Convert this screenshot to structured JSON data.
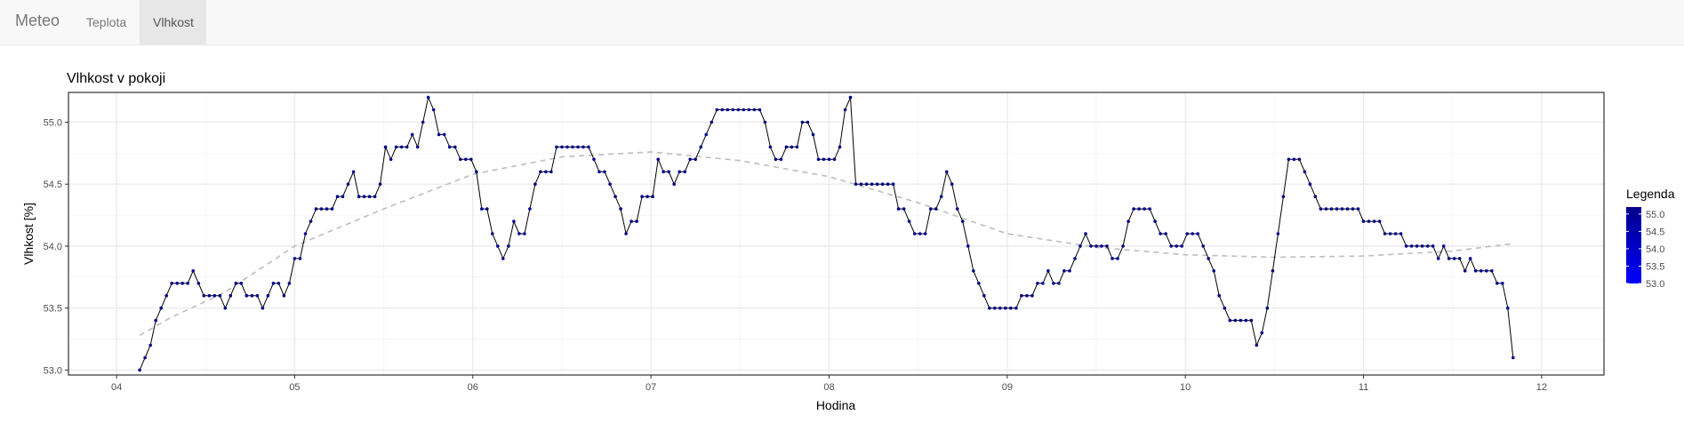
{
  "navbar": {
    "brand": "Meteo",
    "tabs": [
      {
        "label": "Teplota",
        "active": false
      },
      {
        "label": "Vlhkost",
        "active": true
      }
    ]
  },
  "colors": {
    "line": "#000000",
    "point_fill": "#00008b",
    "smooth": "#bdbdbd",
    "panel_border": "#333333",
    "grid_major": "#ebebeb",
    "grid_minor": "#f5f5f5",
    "legend_low": "#0000ff",
    "legend_high": "#00008b"
  },
  "chart_data": {
    "type": "line",
    "title": "Vlhkost v pokoji",
    "xlabel": "Hodina",
    "ylabel": "Vlhkost [%]",
    "xlim": [
      3.73,
      12.35
    ],
    "ylim": [
      52.96,
      55.24
    ],
    "x_ticks": [
      4,
      5,
      6,
      7,
      8,
      9,
      10,
      11,
      12
    ],
    "x_tick_labels": [
      "04",
      "05",
      "06",
      "07",
      "08",
      "09",
      "10",
      "11",
      "12"
    ],
    "y_ticks": [
      53.0,
      53.5,
      54.0,
      54.5,
      55.0
    ],
    "y_tick_labels": [
      "53.0",
      "53.5",
      "54.0",
      "54.5",
      "55.0"
    ],
    "grid": true,
    "legend": {
      "title": "Legenda",
      "position": "right",
      "type": "colorbar",
      "range": [
        53.0,
        55.2
      ],
      "labels": [
        "55.0",
        "54.5",
        "54.0",
        "53.5",
        "53.0"
      ],
      "label_values": [
        55.0,
        54.5,
        54.0,
        53.5,
        53.0
      ]
    },
    "series": [
      {
        "points": [
          [
            4.13,
            53.0
          ],
          [
            4.16,
            53.1
          ],
          [
            4.19,
            53.2
          ],
          [
            4.22,
            53.4
          ],
          [
            4.25,
            53.5
          ],
          [
            4.28,
            53.6
          ],
          [
            4.31,
            53.7
          ],
          [
            4.34,
            53.7
          ],
          [
            4.37,
            53.7
          ],
          [
            4.4,
            53.7
          ],
          [
            4.43,
            53.8
          ],
          [
            4.46,
            53.7
          ],
          [
            4.49,
            53.6
          ],
          [
            4.52,
            53.6
          ],
          [
            4.55,
            53.6
          ],
          [
            4.58,
            53.6
          ],
          [
            4.61,
            53.5
          ],
          [
            4.64,
            53.6
          ],
          [
            4.67,
            53.7
          ],
          [
            4.7,
            53.7
          ],
          [
            4.73,
            53.6
          ],
          [
            4.76,
            53.6
          ],
          [
            4.79,
            53.6
          ],
          [
            4.82,
            53.5
          ],
          [
            4.85,
            53.6
          ],
          [
            4.88,
            53.7
          ],
          [
            4.91,
            53.7
          ],
          [
            4.94,
            53.6
          ],
          [
            4.97,
            53.7
          ],
          [
            5.0,
            53.9
          ],
          [
            5.03,
            53.9
          ],
          [
            5.06,
            54.1
          ],
          [
            5.09,
            54.2
          ],
          [
            5.12,
            54.3
          ],
          [
            5.15,
            54.3
          ],
          [
            5.18,
            54.3
          ],
          [
            5.21,
            54.3
          ],
          [
            5.24,
            54.4
          ],
          [
            5.27,
            54.4
          ],
          [
            5.3,
            54.5
          ],
          [
            5.33,
            54.6
          ],
          [
            5.36,
            54.4
          ],
          [
            5.39,
            54.4
          ],
          [
            5.42,
            54.4
          ],
          [
            5.45,
            54.4
          ],
          [
            5.48,
            54.5
          ],
          [
            5.51,
            54.8
          ],
          [
            5.54,
            54.7
          ],
          [
            5.57,
            54.8
          ],
          [
            5.6,
            54.8
          ],
          [
            5.63,
            54.8
          ],
          [
            5.66,
            54.9
          ],
          [
            5.69,
            54.8
          ],
          [
            5.72,
            55.0
          ],
          [
            5.75,
            55.2
          ],
          [
            5.78,
            55.1
          ],
          [
            5.81,
            54.9
          ],
          [
            5.84,
            54.9
          ],
          [
            5.87,
            54.8
          ],
          [
            5.9,
            54.8
          ],
          [
            5.93,
            54.7
          ],
          [
            5.96,
            54.7
          ],
          [
            5.99,
            54.7
          ],
          [
            6.02,
            54.6
          ],
          [
            6.05,
            54.3
          ],
          [
            6.08,
            54.3
          ],
          [
            6.11,
            54.1
          ],
          [
            6.14,
            54.0
          ],
          [
            6.17,
            53.9
          ],
          [
            6.2,
            54.0
          ],
          [
            6.23,
            54.2
          ],
          [
            6.26,
            54.1
          ],
          [
            6.29,
            54.1
          ],
          [
            6.32,
            54.3
          ],
          [
            6.35,
            54.5
          ],
          [
            6.38,
            54.6
          ],
          [
            6.41,
            54.6
          ],
          [
            6.44,
            54.6
          ],
          [
            6.47,
            54.8
          ],
          [
            6.5,
            54.8
          ],
          [
            6.53,
            54.8
          ],
          [
            6.56,
            54.8
          ],
          [
            6.59,
            54.8
          ],
          [
            6.62,
            54.8
          ],
          [
            6.65,
            54.8
          ],
          [
            6.68,
            54.7
          ],
          [
            6.71,
            54.6
          ],
          [
            6.74,
            54.6
          ],
          [
            6.77,
            54.5
          ],
          [
            6.8,
            54.4
          ],
          [
            6.83,
            54.3
          ],
          [
            6.86,
            54.1
          ],
          [
            6.89,
            54.2
          ],
          [
            6.92,
            54.2
          ],
          [
            6.95,
            54.4
          ],
          [
            6.98,
            54.4
          ],
          [
            7.01,
            54.4
          ],
          [
            7.04,
            54.7
          ],
          [
            7.07,
            54.6
          ],
          [
            7.1,
            54.6
          ],
          [
            7.13,
            54.5
          ],
          [
            7.16,
            54.6
          ],
          [
            7.19,
            54.6
          ],
          [
            7.22,
            54.7
          ],
          [
            7.25,
            54.7
          ],
          [
            7.28,
            54.8
          ],
          [
            7.31,
            54.9
          ],
          [
            7.34,
            55.0
          ],
          [
            7.37,
            55.1
          ],
          [
            7.4,
            55.1
          ],
          [
            7.43,
            55.1
          ],
          [
            7.46,
            55.1
          ],
          [
            7.49,
            55.1
          ],
          [
            7.52,
            55.1
          ],
          [
            7.55,
            55.1
          ],
          [
            7.58,
            55.1
          ],
          [
            7.61,
            55.1
          ],
          [
            7.64,
            55.0
          ],
          [
            7.67,
            54.8
          ],
          [
            7.7,
            54.7
          ],
          [
            7.73,
            54.7
          ],
          [
            7.76,
            54.8
          ],
          [
            7.79,
            54.8
          ],
          [
            7.82,
            54.8
          ],
          [
            7.85,
            55.0
          ],
          [
            7.88,
            55.0
          ],
          [
            7.91,
            54.9
          ],
          [
            7.94,
            54.7
          ],
          [
            7.97,
            54.7
          ],
          [
            8.0,
            54.7
          ],
          [
            8.03,
            54.7
          ],
          [
            8.06,
            54.8
          ],
          [
            8.09,
            55.1
          ],
          [
            8.12,
            55.2
          ],
          [
            8.15,
            54.5
          ],
          [
            8.18,
            54.5
          ],
          [
            8.21,
            54.5
          ],
          [
            8.24,
            54.5
          ],
          [
            8.27,
            54.5
          ],
          [
            8.3,
            54.5
          ],
          [
            8.33,
            54.5
          ],
          [
            8.36,
            54.5
          ],
          [
            8.39,
            54.3
          ],
          [
            8.42,
            54.3
          ],
          [
            8.45,
            54.2
          ],
          [
            8.48,
            54.1
          ],
          [
            8.51,
            54.1
          ],
          [
            8.54,
            54.1
          ],
          [
            8.57,
            54.3
          ],
          [
            8.6,
            54.3
          ],
          [
            8.63,
            54.4
          ],
          [
            8.66,
            54.6
          ],
          [
            8.69,
            54.5
          ],
          [
            8.72,
            54.3
          ],
          [
            8.75,
            54.2
          ],
          [
            8.78,
            54.0
          ],
          [
            8.81,
            53.8
          ],
          [
            8.84,
            53.7
          ],
          [
            8.87,
            53.6
          ],
          [
            8.9,
            53.5
          ],
          [
            8.93,
            53.5
          ],
          [
            8.96,
            53.5
          ],
          [
            8.99,
            53.5
          ],
          [
            9.02,
            53.5
          ],
          [
            9.05,
            53.5
          ],
          [
            9.08,
            53.6
          ],
          [
            9.11,
            53.6
          ],
          [
            9.14,
            53.6
          ],
          [
            9.17,
            53.7
          ],
          [
            9.2,
            53.7
          ],
          [
            9.23,
            53.8
          ],
          [
            9.26,
            53.7
          ],
          [
            9.29,
            53.7
          ],
          [
            9.32,
            53.8
          ],
          [
            9.35,
            53.8
          ],
          [
            9.38,
            53.9
          ],
          [
            9.41,
            54.0
          ],
          [
            9.44,
            54.1
          ],
          [
            9.47,
            54.0
          ],
          [
            9.5,
            54.0
          ],
          [
            9.53,
            54.0
          ],
          [
            9.56,
            54.0
          ],
          [
            9.59,
            53.9
          ],
          [
            9.62,
            53.9
          ],
          [
            9.65,
            54.0
          ],
          [
            9.68,
            54.2
          ],
          [
            9.71,
            54.3
          ],
          [
            9.74,
            54.3
          ],
          [
            9.77,
            54.3
          ],
          [
            9.8,
            54.3
          ],
          [
            9.83,
            54.2
          ],
          [
            9.86,
            54.1
          ],
          [
            9.89,
            54.1
          ],
          [
            9.92,
            54.0
          ],
          [
            9.95,
            54.0
          ],
          [
            9.98,
            54.0
          ],
          [
            10.01,
            54.1
          ],
          [
            10.04,
            54.1
          ],
          [
            10.07,
            54.1
          ],
          [
            10.1,
            54.0
          ],
          [
            10.13,
            53.9
          ],
          [
            10.16,
            53.8
          ],
          [
            10.19,
            53.6
          ],
          [
            10.22,
            53.5
          ],
          [
            10.25,
            53.4
          ],
          [
            10.28,
            53.4
          ],
          [
            10.31,
            53.4
          ],
          [
            10.34,
            53.4
          ],
          [
            10.37,
            53.4
          ],
          [
            10.4,
            53.2
          ],
          [
            10.43,
            53.3
          ],
          [
            10.46,
            53.5
          ],
          [
            10.49,
            53.8
          ],
          [
            10.52,
            54.1
          ],
          [
            10.55,
            54.4
          ],
          [
            10.58,
            54.7
          ],
          [
            10.61,
            54.7
          ],
          [
            10.64,
            54.7
          ],
          [
            10.67,
            54.6
          ],
          [
            10.7,
            54.5
          ],
          [
            10.73,
            54.4
          ],
          [
            10.76,
            54.3
          ],
          [
            10.79,
            54.3
          ],
          [
            10.82,
            54.3
          ],
          [
            10.85,
            54.3
          ],
          [
            10.88,
            54.3
          ],
          [
            10.91,
            54.3
          ],
          [
            10.94,
            54.3
          ],
          [
            10.97,
            54.3
          ],
          [
            11.0,
            54.2
          ],
          [
            11.03,
            54.2
          ],
          [
            11.06,
            54.2
          ],
          [
            11.09,
            54.2
          ],
          [
            11.12,
            54.1
          ],
          [
            11.15,
            54.1
          ],
          [
            11.18,
            54.1
          ],
          [
            11.21,
            54.1
          ],
          [
            11.24,
            54.0
          ],
          [
            11.27,
            54.0
          ],
          [
            11.3,
            54.0
          ],
          [
            11.33,
            54.0
          ],
          [
            11.36,
            54.0
          ],
          [
            11.39,
            54.0
          ],
          [
            11.42,
            53.9
          ],
          [
            11.45,
            54.0
          ],
          [
            11.48,
            53.9
          ],
          [
            11.51,
            53.9
          ],
          [
            11.54,
            53.9
          ],
          [
            11.57,
            53.8
          ],
          [
            11.6,
            53.9
          ],
          [
            11.63,
            53.8
          ],
          [
            11.66,
            53.8
          ],
          [
            11.69,
            53.8
          ],
          [
            11.72,
            53.8
          ],
          [
            11.75,
            53.7
          ],
          [
            11.78,
            53.7
          ],
          [
            11.81,
            53.5
          ],
          [
            11.84,
            53.1
          ]
        ]
      }
    ],
    "smooth_trend": {
      "style": "dashed",
      "points": [
        [
          4.13,
          53.28
        ],
        [
          4.3,
          53.42
        ],
        [
          4.6,
          53.62
        ],
        [
          5.0,
          54.0
        ],
        [
          5.5,
          54.3
        ],
        [
          6.0,
          54.58
        ],
        [
          6.5,
          54.72
        ],
        [
          7.0,
          54.76
        ],
        [
          7.5,
          54.69
        ],
        [
          8.0,
          54.56
        ],
        [
          8.5,
          54.35
        ],
        [
          9.0,
          54.1
        ],
        [
          9.5,
          53.99
        ],
        [
          10.0,
          53.93
        ],
        [
          10.5,
          53.91
        ],
        [
          11.0,
          53.92
        ],
        [
          11.5,
          53.96
        ],
        [
          11.84,
          54.02
        ]
      ]
    }
  }
}
